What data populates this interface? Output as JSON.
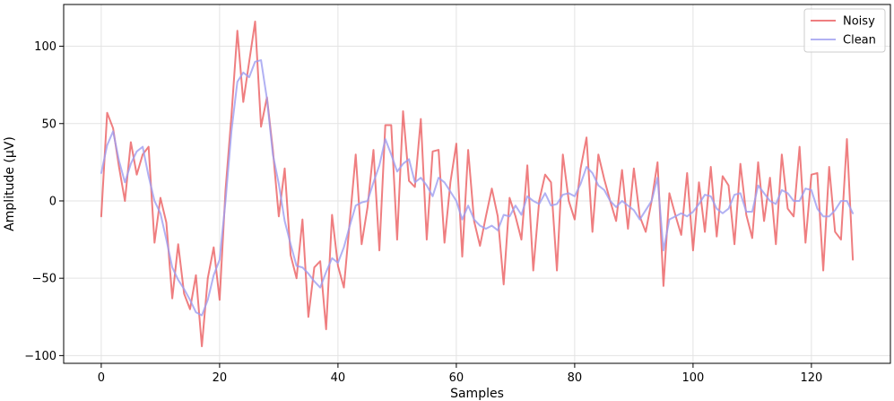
{
  "chart_data": {
    "type": "line",
    "title": "",
    "xlabel": "Samples",
    "ylabel": "Amplitude (µV)",
    "xlim": [
      -6.35,
      133.35
    ],
    "ylim": [
      -105,
      127
    ],
    "xticks": [
      0,
      20,
      40,
      60,
      80,
      100,
      120
    ],
    "yticks": [
      -100,
      -50,
      0,
      50,
      100
    ],
    "xtick_labels": [
      "0",
      "20",
      "40",
      "60",
      "80",
      "100",
      "120"
    ],
    "ytick_labels": [
      "−100",
      "−50",
      "0",
      "50",
      "100"
    ],
    "grid": true,
    "legend_position": "top-right",
    "series": [
      {
        "name": "Noisy",
        "color": "#e8474a",
        "values": [
          -10,
          57,
          47,
          22,
          0,
          38,
          17,
          30,
          35,
          -27,
          2,
          -14,
          -63,
          -28,
          -60,
          -70,
          -48,
          -94,
          -50,
          -30,
          -64,
          7,
          55,
          110,
          64,
          90,
          116,
          48,
          67,
          33,
          -10,
          21,
          -35,
          -50,
          -12,
          -75,
          -43,
          -39,
          -83,
          -9,
          -42,
          -56,
          -13,
          30,
          -28,
          -4,
          33,
          -32,
          49,
          49,
          -25,
          58,
          13,
          9,
          53,
          -25,
          32,
          33,
          -27,
          12,
          37,
          -36,
          33,
          -13,
          -29,
          -10,
          8,
          -10,
          -54,
          2,
          -10,
          -25,
          23,
          -45,
          0,
          17,
          12,
          -45,
          30,
          0,
          -12,
          21,
          41,
          -20,
          30,
          14,
          0,
          -13,
          20,
          -18,
          21,
          -10,
          -20,
          0,
          25,
          -55,
          5,
          -9,
          -22,
          18,
          -32,
          12,
          -20,
          22,
          -23,
          16,
          10,
          -28,
          24,
          -9,
          -24,
          25,
          -13,
          15,
          -28,
          30,
          -5,
          -10,
          35,
          -27,
          17,
          18,
          -45,
          22,
          -20,
          -25,
          40,
          -38
        ],
        "values_note": ""
      },
      {
        "name": "Clean",
        "color": "#9d9df0",
        "values": [
          18,
          36,
          45,
          26,
          12,
          24,
          32,
          35,
          16,
          0,
          -8,
          -25,
          -43,
          -51,
          -57,
          -64,
          -72,
          -74,
          -64,
          -48,
          -38,
          0,
          45,
          77,
          83,
          80,
          90,
          91,
          66,
          30,
          11,
          -13,
          -28,
          -42,
          -43,
          -47,
          -52,
          -56,
          -46,
          -37,
          -40,
          -30,
          -16,
          -3,
          -1,
          0,
          12,
          23,
          40,
          30,
          19,
          24,
          27,
          12,
          15,
          10,
          3,
          15,
          12,
          6,
          0,
          -12,
          -3,
          -12,
          -16,
          -18,
          -16,
          -19,
          -9,
          -10,
          -3,
          -9,
          3,
          0,
          -2,
          5,
          -3,
          -2,
          4,
          5,
          3,
          11,
          22,
          18,
          10,
          7,
          0,
          -4,
          0,
          -3,
          -6,
          -12,
          -6,
          0,
          15,
          -32,
          -12,
          -10,
          -8,
          -10,
          -7,
          -2,
          4,
          3,
          -5,
          -8,
          -5,
          4,
          5,
          -7,
          -7,
          10,
          5,
          0,
          -2,
          7,
          5,
          0,
          0,
          8,
          7,
          -5,
          -10,
          -10,
          -6,
          0,
          0,
          -8
        ]
      }
    ]
  }
}
